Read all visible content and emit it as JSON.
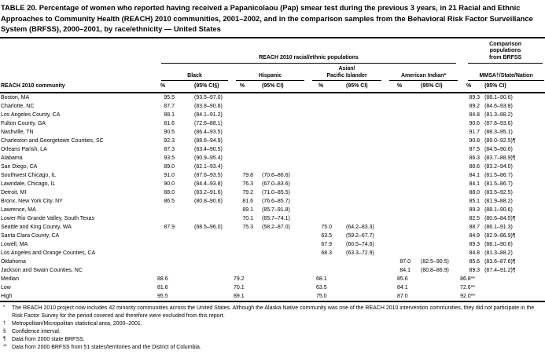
{
  "title": "TABLE 20. Percentage of women who reported having received a Papanicolaou (Pap) smear test during the previous 3 years, in 21 Racial and Ethnic Approaches to Community Health (REACH) 2010 communities, 2001–2002, and in the comparison samples from the Behavioral Risk Factor Surveillance System (BRFSS), 2000–2001, by race/ethnicity — United States",
  "header": {
    "reach_group": "REACH 2010 racial/ethnic populations",
    "comparison_group_lines": [
      "Comparison",
      "populations",
      "from BRFSS"
    ],
    "community": "REACH 2010 community",
    "groups": [
      {
        "label": "Black",
        "pct": "%",
        "ci": "(95% CI§)"
      },
      {
        "label": "Hispanic",
        "pct": "%",
        "ci": "(95% CI)"
      },
      {
        "label_lines": [
          "Asian/",
          "Pacific Islander"
        ],
        "pct": "%",
        "ci": "(95% CI)"
      },
      {
        "label": "American Indian*",
        "pct": "%",
        "ci": "(95% CI)"
      },
      {
        "label": "MMSA†/State/Nation",
        "pct": "%",
        "ci": "(95% CI)"
      }
    ]
  },
  "rows": [
    {
      "community": "Boston, MA",
      "cells": [
        "95.5",
        "(93.5–97.0)",
        "",
        "",
        "",
        "",
        "",
        "",
        "89.3",
        "(88.1–90.6)"
      ]
    },
    {
      "community": "Charlotte, NC",
      "cells": [
        "87.7",
        "(83.8–90.8)",
        "",
        "",
        "",
        "",
        "",
        "",
        "89.2",
        "(84.6–93.8)"
      ]
    },
    {
      "community": "Los Angeles County, CA",
      "cells": [
        "88.1",
        "(84.1–91.2)",
        "",
        "",
        "",
        "",
        "",
        "",
        "84.8",
        "(81.3–88.2)"
      ]
    },
    {
      "community": "Fulton County, GA",
      "cells": [
        "81.6",
        "(72.6–88.1)",
        "",
        "",
        "",
        "",
        "",
        "",
        "90.6",
        "(87.6–93.6)"
      ]
    },
    {
      "community": "Nashville, TN",
      "cells": [
        "90.5",
        "(86.4–93.5)",
        "",
        "",
        "",
        "",
        "",
        "",
        "91.7",
        "(88.3–95.1)"
      ]
    },
    {
      "community": "Charleston and Georgetown Counties, SC",
      "cells": [
        "92.3",
        "(88.6–94.9)",
        "",
        "",
        "",
        "",
        "",
        "",
        "90.8",
        "(89.0–92.5)¶"
      ]
    },
    {
      "community": "Orleans Parish, LA",
      "cells": [
        "87.3",
        "(83.4–90.5)",
        "",
        "",
        "",
        "",
        "",
        "",
        "87.5",
        "(84.5–90.6)"
      ]
    },
    {
      "community": "Alabama",
      "cells": [
        "93.5",
        "(90.9–95.4)",
        "",
        "",
        "",
        "",
        "",
        "",
        "86.3",
        "(83.7–88.9)¶"
      ]
    },
    {
      "community": "San Diego, CA",
      "cells": [
        "89.0",
        "(82.1–93.4)",
        "",
        "",
        "",
        "",
        "",
        "",
        "88.6",
        "(83.2–94.0)"
      ]
    },
    {
      "community": "Southwest Chicago, IL",
      "cells": [
        "91.0",
        "(87.6–93.5)",
        "79.8",
        "(70.6–86.6)",
        "",
        "",
        "",
        "",
        "84.1",
        "(81.5–86.7)"
      ]
    },
    {
      "community": "Lawndale, Chicago, IL",
      "cells": [
        "90.0",
        "(84.4–93.8)",
        "76.3",
        "(67.0–83.6)",
        "",
        "",
        "",
        "",
        "84.1",
        "(81.5–86.7)"
      ]
    },
    {
      "community": "Detroit, MI",
      "cells": [
        "88.0",
        "(83.2–91.6)",
        "79.2",
        "(71.0–85.5)",
        "",
        "",
        "",
        "",
        "88.0",
        "(83.5–92.5)"
      ]
    },
    {
      "community": "Bronx, New York City, NY",
      "cells": [
        "86.5",
        "(80.8–90.6)",
        "81.6",
        "(76.6–85.7)",
        "",
        "",
        "",
        "",
        "85.1",
        "(81.9–88.2)"
      ]
    },
    {
      "community": "Lawrence, MA",
      "cells": [
        "",
        "",
        "89.1",
        "(85.7–91.8)",
        "",
        "",
        "",
        "",
        "89.3",
        "(88.1–90.6)"
      ]
    },
    {
      "community": "Lower Rio Grande Valley, South Texas",
      "cells": [
        "",
        "",
        "70.1",
        "(65.7–74.1)",
        "",
        "",
        "",
        "",
        "82.5",
        "(80.6–84.5)¶"
      ]
    },
    {
      "community": "Seattle and King County, WA",
      "cells": [
        "87.9",
        "(68.5–96.0)",
        "75.3",
        "(58.2–87.0)",
        "75.0",
        "(64.2–83.3)",
        "",
        "",
        "88.7",
        "(86.1–91.3)"
      ]
    },
    {
      "community": "Santa Clara County, CA",
      "cells": [
        "",
        "",
        "",
        "",
        "63.5",
        "(59.2–67.7)",
        "",
        "",
        "84.9",
        "(82.9–86.9)¶"
      ]
    },
    {
      "community": "Lowell, MA",
      "cells": [
        "",
        "",
        "",
        "",
        "67.9",
        "(60.5–74.6)",
        "",
        "",
        "89.3",
        "(88.1–90.6)"
      ]
    },
    {
      "community": "Los Angeles and Orange Counties, CA",
      "cells": [
        "",
        "",
        "",
        "",
        "68.3",
        "(63.3–72.9)",
        "",
        "",
        "84.8",
        "(81.3–88.2)"
      ]
    },
    {
      "community": "Oklahoma",
      "cells": [
        "",
        "",
        "",
        "",
        "",
        "",
        "87.0",
        "(82.5–90.5)",
        "85.6",
        "(83.6–87.6)¶"
      ]
    },
    {
      "community": "Jackson and Swain Counties, NC",
      "cells": [
        "",
        "",
        "",
        "",
        "",
        "",
        "84.1",
        "(80.8–86.9)",
        "89.3",
        "(87.4–91.2)¶"
      ]
    }
  ],
  "summary": [
    {
      "label": "Median",
      "values": [
        "88.6",
        "79.2",
        "68.1",
        "85.6",
        "86.8**"
      ]
    },
    {
      "label": "Low",
      "values": [
        "81.6",
        "70.1",
        "63.5",
        "84.1",
        "72.6**"
      ]
    },
    {
      "label": "High",
      "values": [
        "95.5",
        "89.1",
        "75.0",
        "87.0",
        "92.0**"
      ]
    }
  ],
  "footnotes": [
    {
      "marker": "*",
      "text": "The REACH 2010 project now includes 42 minority communities across the United States. Although the Alaska Native community was one of the REACH 2010 intervention communities, they did not participate in the Risk Factor Survey for the period covered and therefore were excluded from this report."
    },
    {
      "marker": "†",
      "text": "Metropolitan/Micropolitan statistical area, 2000–2001."
    },
    {
      "marker": "§",
      "text": "Confidence interval."
    },
    {
      "marker": "¶",
      "text": "Data from 2000 state BRFSS."
    },
    {
      "marker": "**",
      "text": "Data from 2000 BRFSS from 51 states/territories and the District of Columbia."
    }
  ]
}
